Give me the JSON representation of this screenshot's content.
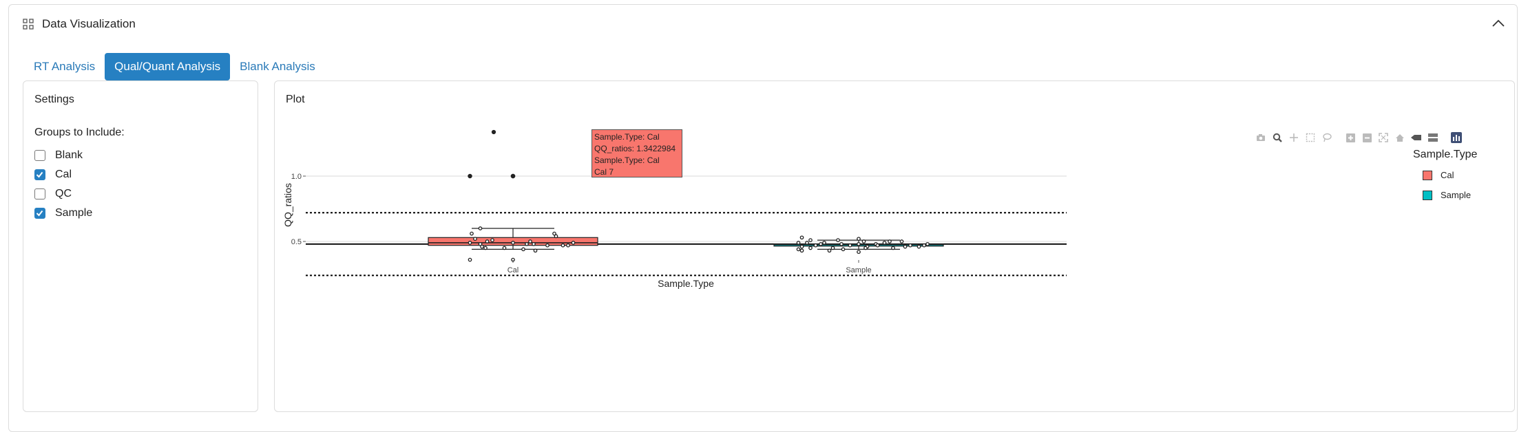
{
  "header": {
    "title": "Data Visualization",
    "icon": "grid-icon",
    "collapse_icon": "chevron-up-icon"
  },
  "tabs": [
    {
      "label": "RT Analysis",
      "active": false
    },
    {
      "label": "Qual/Quant Analysis",
      "active": true
    },
    {
      "label": "Blank Analysis",
      "active": false
    }
  ],
  "settings": {
    "title": "Settings",
    "groups_label": "Groups to Include:",
    "groups": [
      {
        "label": "Blank",
        "checked": false
      },
      {
        "label": "Cal",
        "checked": true
      },
      {
        "label": "QC",
        "checked": false
      },
      {
        "label": "Sample",
        "checked": true
      }
    ]
  },
  "plot": {
    "title": "Plot",
    "modebar_icons": [
      "camera-icon",
      "zoom-icon",
      "pan-icon",
      "box-select-icon",
      "lasso-icon",
      "zoom-in-icon",
      "zoom-out-icon",
      "autoscale-icon",
      "home-icon",
      "hover-closest-icon",
      "hover-compare-icon",
      "plotly-logo-icon"
    ],
    "tooltip": {
      "lines": [
        "Sample.Type: Cal",
        "QQ_ratios: 1.3422984",
        "Sample.Type: Cal",
        "Cal 7"
      ]
    },
    "legend": {
      "title": "Sample.Type",
      "items": [
        {
          "label": "Cal",
          "color": "#f8766d"
        },
        {
          "label": "Sample",
          "color": "#00bfc4"
        }
      ]
    }
  },
  "chart_data": {
    "type": "box",
    "xlabel": "Sample.Type",
    "ylabel": "QQ_ratios",
    "categories": [
      "Cal",
      "Sample"
    ],
    "y_ticks": [
      0.5,
      1.0
    ],
    "ylim": [
      0.26,
      1.2
    ],
    "reference_lines": {
      "solid": 0.48,
      "dotted_upper": 0.72,
      "dotted_lower": 0.24
    },
    "grid": true,
    "boxes": [
      {
        "category": "Cal",
        "color": "#f8766d",
        "q1": 0.47,
        "median": 0.49,
        "q3": 0.53,
        "whisker_low": 0.44,
        "whisker_high": 0.6
      },
      {
        "category": "Sample",
        "color": "#00bfc4",
        "q1": 0.47,
        "median": 0.475,
        "q3": 0.48,
        "whisker_low": 0.44,
        "whisker_high": 0.51
      }
    ],
    "points": [
      {
        "category": "Cal",
        "values": [
          1.0,
          1.0,
          1.0,
          0.6,
          0.56,
          0.54,
          0.52,
          0.51,
          0.5,
          0.49,
          0.49,
          0.48,
          0.48,
          0.47,
          0.47,
          0.46,
          0.45,
          0.44,
          0.43,
          0.56,
          0.5,
          0.48,
          0.45,
          0.36,
          0.36,
          0.49,
          0.47
        ],
        "jitter": [
          -0.25,
          0.0,
          0.0,
          -0.19,
          -0.24,
          0.25,
          -0.22,
          -0.12,
          -0.15,
          -0.25,
          0.0,
          -0.19,
          0.12,
          0.2,
          0.29,
          -0.18,
          -0.16,
          0.06,
          0.13,
          0.24,
          0.1,
          0.08,
          -0.05,
          -0.25,
          0.0,
          0.35,
          0.32
        ]
      },
      {
        "category": "Sample",
        "values": [
          0.53,
          0.51,
          0.51,
          0.5,
          0.5,
          0.49,
          0.49,
          0.49,
          0.48,
          0.48,
          0.48,
          0.47,
          0.47,
          0.47,
          0.46,
          0.46,
          0.45,
          0.45,
          0.44,
          0.43,
          0.43,
          0.52,
          0.5,
          0.49,
          0.48,
          0.47,
          0.46,
          0.45,
          0.44,
          0.42,
          0.48,
          0.47,
          0.46,
          0.45
        ],
        "jitter": [
          -0.33,
          -0.28,
          -0.12,
          0.25,
          0.18,
          -0.35,
          -0.3,
          -0.2,
          -0.1,
          0.0,
          0.1,
          -0.25,
          -0.05,
          0.3,
          -0.33,
          0.05,
          -0.28,
          0.2,
          -0.35,
          -0.33,
          -0.17,
          0.0,
          0.03,
          0.15,
          0.4,
          0.38,
          0.27,
          -0.15,
          -0.09,
          0.0,
          -0.22,
          0.11,
          0.35,
          0.04
        ]
      }
    ],
    "hover_point": {
      "category": "Cal",
      "value": 1.3422984,
      "label": "Cal 7"
    }
  }
}
